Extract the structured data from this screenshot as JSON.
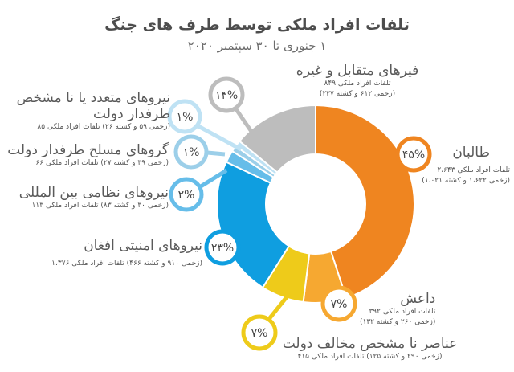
{
  "header": {
    "title": "تلفات افراد ملکی توسط طرف های جنگ",
    "subtitle": "۱ جنوری تا ۳۰ سپتمبر ۲۰۲۰"
  },
  "labels": {
    "taliban": {
      "name": "طالبان",
      "pct": "۴۵%",
      "line1": "تلفات افراد ملکی ۲،۶۴۳",
      "line2": "(زخمی ۱،۶۲۲ و کشته ۱،۰۲۱)"
    },
    "daesh": {
      "name": "داعش",
      "pct": "۷%",
      "line1": "تلفات افراد ملکی ۳۹۲",
      "line2": "(زخمی ۲۶۰ و کشته ۱۳۲)"
    },
    "unknown_anti_gov": {
      "name": "عناصر نا مشخص مخالف دولت",
      "pct": "۷%",
      "line1": "(زخمی ۲۹۰ و کشته ۱۲۵) تلفات افراد ملکی ۴۱۵"
    },
    "afghan_security": {
      "name": "نیروهای امنیتی افغان",
      "pct": "۲۳%",
      "line1": "(زخمی ۹۱۰ و کشته ۴۶۶) تلفات افراد ملکی ۱،۳۷۶"
    },
    "international": {
      "name": "نیروهای نظامی بین المللی",
      "pct": "۲%",
      "line1": "(زخمی ۳۰ و کشته ۸۳) تلفات افراد ملکی ۱۱۳"
    },
    "pro_gov_armed": {
      "name": "گروهای مسلح طرفدار دولت",
      "pct": "۱%",
      "line1": "(زخمی ۳۹ و کشته ۲۷) تلفات افراد ملکی ۶۶"
    },
    "multiple_unknown_pro_gov": {
      "name_line1": "نیروهای متعدد یا نا مشخص",
      "name_line2": "طرفدار دولت",
      "pct": "۱%",
      "line1": "(زخمی ۵۹ و کشته ۲۶) تلفات افراد ملکی ۸۵"
    },
    "crossfire_other": {
      "name": "فیرهای متقابل و غیره",
      "pct": "۱۴%",
      "line1": "تلفات افراد ملکی ۸۴۹",
      "line2": "(زخمی ۶۱۲ و کشته ۲۳۷)"
    }
  },
  "colors": {
    "taliban": "#ef8520",
    "daesh": "#f6a831",
    "unknown_anti_gov": "#eecb1a",
    "afghan_security": "#0f9ee0",
    "international": "#66bde9",
    "pro_gov_armed": "#9ccfe9",
    "multiple_unknown_pro_gov": "#bfe2f4",
    "crossfire_other": "#bdbdbd"
  },
  "chart_data": {
    "type": "pie",
    "subtype": "donut",
    "title": "تلفات افراد ملکی توسط طرف های جنگ",
    "subtitle": "۱ جنوری تا ۳۰ سپتمبر ۲۰۲۰",
    "categories": [
      "طالبان",
      "داعش",
      "عناصر نا مشخص مخالف دولت",
      "نیروهای امنیتی افغان",
      "نیروهای نظامی بین المللی",
      "گروهای مسلح طرفدار دولت",
      "نیروهای متعدد یا نا مشخص طرفدار دولت",
      "فیرهای متقابل و غیره"
    ],
    "values": [
      45,
      7,
      7,
      23,
      2,
      1,
      1,
      14
    ],
    "unit": "%",
    "series": [
      {
        "name": "civilian_casualties",
        "values": [
          2643,
          392,
          415,
          1376,
          113,
          66,
          85,
          849
        ]
      },
      {
        "name": "injured",
        "values": [
          1622,
          260,
          290,
          910,
          30,
          39,
          59,
          612
        ]
      },
      {
        "name": "killed",
        "values": [
          1021,
          132,
          125,
          466,
          83,
          27,
          26,
          237
        ]
      }
    ],
    "colors": [
      "#ef8520",
      "#f6a831",
      "#eecb1a",
      "#0f9ee0",
      "#66bde9",
      "#9ccfe9",
      "#bfe2f4",
      "#bdbdbd"
    ],
    "legend": "callouts"
  }
}
